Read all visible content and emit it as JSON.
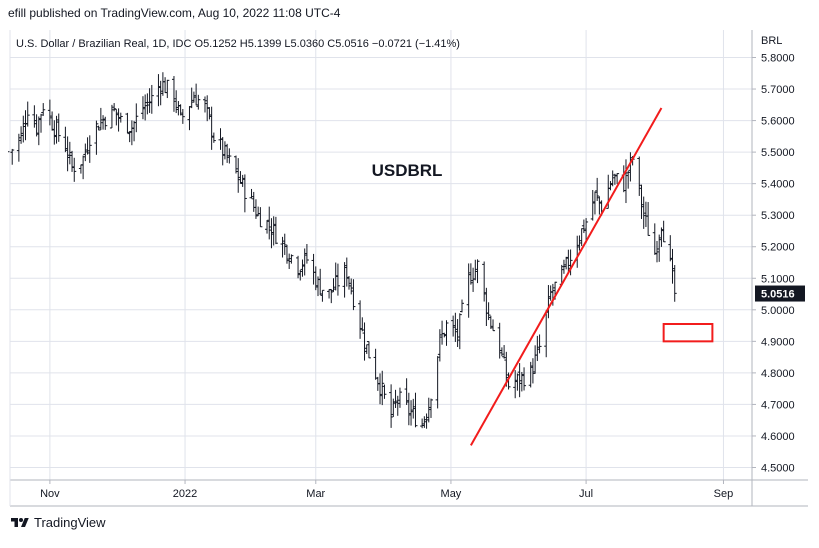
{
  "header": {
    "published": "efill published on TradingView.com, Aug 10, 2022 11:08 UTC-4"
  },
  "footer": {
    "brand": "TradingView"
  },
  "chart_data": {
    "type": "bar",
    "title": "",
    "symbol_label": "USDBRL",
    "legend": {
      "name": "U.S. Dollar / Brazilian Real, 1D, IDC",
      "o_key": "O",
      "o_val": "5.1252",
      "h_key": "H",
      "h_val": "5.1399",
      "l_key": "L",
      "l_val": "5.0360",
      "c_key": "C",
      "c_val": "5.0516",
      "change": "−0.0721 (−1.41%)"
    },
    "currency": "BRL",
    "last_price": "5.0516",
    "ylim": [
      4.5,
      5.85
    ],
    "y_ticks": [
      "5.8000",
      "5.7000",
      "5.6000",
      "5.5000",
      "5.4000",
      "5.3000",
      "5.2000",
      "5.1000",
      "5.0000",
      "4.9000",
      "4.8000",
      "4.7000",
      "4.6000",
      "4.5000"
    ],
    "x_range": [
      "2021-10-14",
      "2022-09-22"
    ],
    "x_ticks": [
      {
        "date": "2021-11-01",
        "label": "Nov"
      },
      {
        "date": "2022-01-01",
        "label": "2022"
      },
      {
        "date": "2022-03-01",
        "label": "Mar"
      },
      {
        "date": "2022-05-01",
        "label": "May"
      },
      {
        "date": "2022-07-01",
        "label": "Jul"
      },
      {
        "date": "2022-09-01",
        "label": "Sep"
      }
    ],
    "price_path": [
      [
        "2021-10-14",
        5.5
      ],
      [
        "2021-10-19",
        5.55
      ],
      [
        "2021-10-22",
        5.64
      ],
      [
        "2021-10-26",
        5.58
      ],
      [
        "2021-10-29",
        5.65
      ],
      [
        "2021-11-03",
        5.58
      ],
      [
        "2021-11-08",
        5.52
      ],
      [
        "2021-11-11",
        5.45
      ],
      [
        "2021-11-16",
        5.48
      ],
      [
        "2021-11-19",
        5.55
      ],
      [
        "2021-11-24",
        5.6
      ],
      [
        "2021-11-30",
        5.63
      ],
      [
        "2021-12-03",
        5.6
      ],
      [
        "2021-12-08",
        5.58
      ],
      [
        "2021-12-13",
        5.64
      ],
      [
        "2021-12-17",
        5.67
      ],
      [
        "2021-12-21",
        5.72
      ],
      [
        "2021-12-27",
        5.68
      ],
      [
        "2021-12-30",
        5.6
      ],
      [
        "2022-01-05",
        5.68
      ],
      [
        "2022-01-10",
        5.64
      ],
      [
        "2022-01-14",
        5.55
      ],
      [
        "2022-01-20",
        5.48
      ],
      [
        "2022-01-25",
        5.42
      ],
      [
        "2022-01-28",
        5.38
      ],
      [
        "2022-02-03",
        5.3
      ],
      [
        "2022-02-09",
        5.26
      ],
      [
        "2022-02-15",
        5.2
      ],
      [
        "2022-02-21",
        5.14
      ],
      [
        "2022-02-25",
        5.16
      ],
      [
        "2022-03-02",
        5.08
      ],
      [
        "2022-03-07",
        5.05
      ],
      [
        "2022-03-10",
        5.08
      ],
      [
        "2022-03-15",
        5.12
      ],
      [
        "2022-03-18",
        5.04
      ],
      [
        "2022-03-23",
        4.9
      ],
      [
        "2022-03-29",
        4.78
      ],
      [
        "2022-04-04",
        4.66
      ],
      [
        "2022-04-07",
        4.72
      ],
      [
        "2022-04-12",
        4.68
      ],
      [
        "2022-04-18",
        4.64
      ],
      [
        "2022-04-21",
        4.7
      ],
      [
        "2022-04-26",
        4.9
      ],
      [
        "2022-04-29",
        4.95
      ],
      [
        "2022-05-04",
        4.92
      ],
      [
        "2022-05-09",
        5.1
      ],
      [
        "2022-05-13",
        5.14
      ],
      [
        "2022-05-18",
        4.98
      ],
      [
        "2022-05-23",
        4.88
      ],
      [
        "2022-05-27",
        4.76
      ],
      [
        "2022-06-01",
        4.78
      ],
      [
        "2022-06-06",
        4.8
      ],
      [
        "2022-06-10",
        4.88
      ],
      [
        "2022-06-15",
        5.05
      ],
      [
        "2022-06-21",
        5.12
      ],
      [
        "2022-06-27",
        5.22
      ],
      [
        "2022-07-01",
        5.28
      ],
      [
        "2022-07-05",
        5.36
      ],
      [
        "2022-07-08",
        5.33
      ],
      [
        "2022-07-13",
        5.42
      ],
      [
        "2022-07-18",
        5.4
      ],
      [
        "2022-07-22",
        5.48
      ],
      [
        "2022-07-27",
        5.3
      ],
      [
        "2022-08-01",
        5.18
      ],
      [
        "2022-08-04",
        5.28
      ],
      [
        "2022-08-08",
        5.14
      ],
      [
        "2022-08-10",
        5.05
      ]
    ],
    "annotations": {
      "trendline": {
        "from": [
          "2022-05-10",
          4.57
        ],
        "to": [
          "2022-08-04",
          5.64
        ],
        "color": "#f21c1c"
      },
      "box": {
        "from": [
          "2022-08-05",
          4.9
        ],
        "to": [
          "2022-08-27",
          4.955
        ],
        "color": "#f21c1c"
      }
    },
    "colors": {
      "bars": "#131722",
      "grid": "#e0e3eb",
      "axis_text": "#131722",
      "price_tag": "#131722",
      "price_tag_text": "#ffffff"
    }
  }
}
